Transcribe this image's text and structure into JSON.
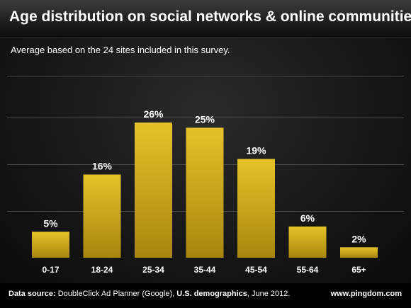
{
  "header": {
    "title": "Age distribution on social networks & online communities"
  },
  "subtitle": "Average based on the 24 sites included in this survey.",
  "footer": {
    "source_label": "Data source:",
    "source_provider": "DoubleClick Ad Planner (Google),",
    "source_scope": "U.S. demographics",
    "source_date": ", June 2012.",
    "site": "www.pingdom.com"
  },
  "colors": {
    "bar_top": "#e6c229",
    "bar_bottom": "#a8860e",
    "gridline": "#4a4a4a",
    "text": "#ffffff"
  },
  "chart_data": {
    "type": "bar",
    "categories": [
      "0-17",
      "18-24",
      "25-34",
      "35-44",
      "45-54",
      "55-64",
      "65+"
    ],
    "values": [
      5,
      16,
      26,
      25,
      19,
      6,
      2
    ],
    "value_labels": [
      "5%",
      "16%",
      "26%",
      "25%",
      "19%",
      "6%",
      "2%"
    ],
    "ylim": [
      0,
      35
    ],
    "grid": true
  }
}
